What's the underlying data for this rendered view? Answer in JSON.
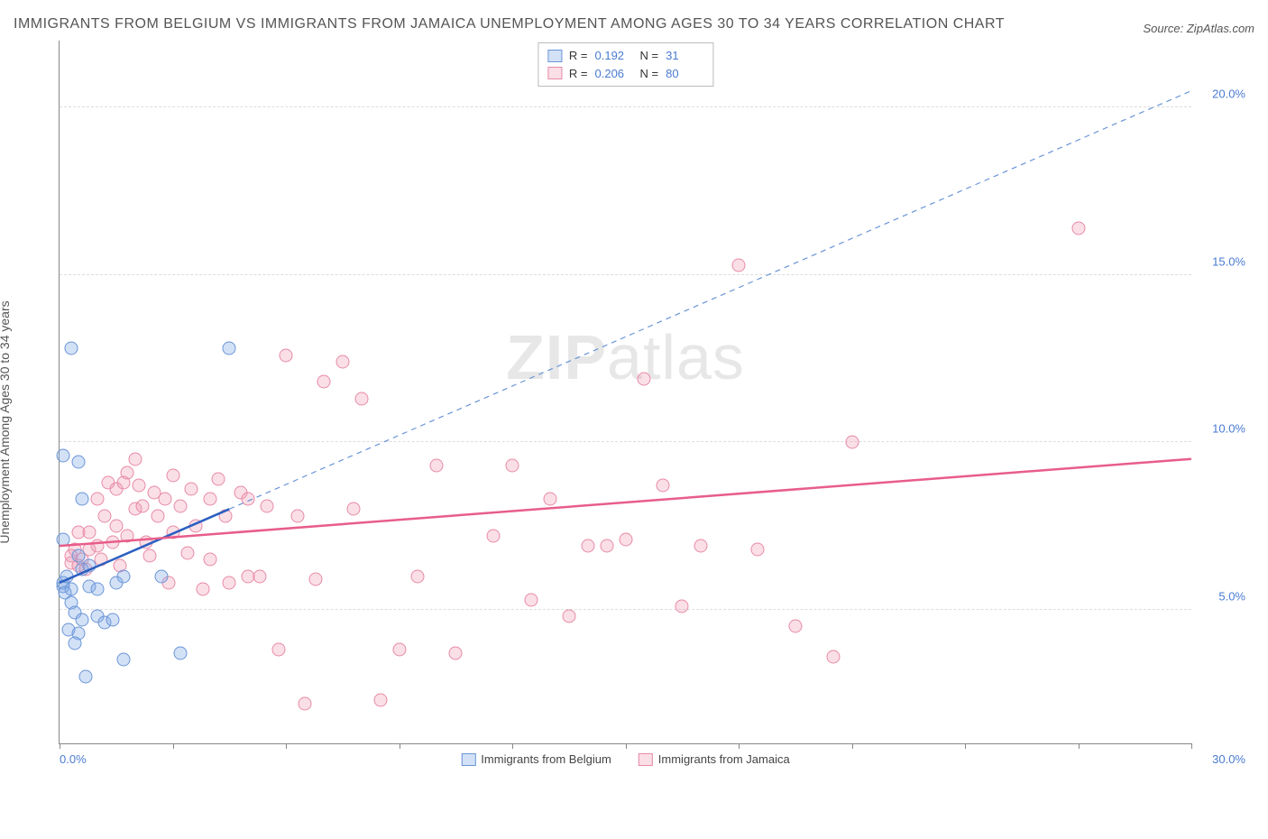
{
  "title": "IMMIGRANTS FROM BELGIUM VS IMMIGRANTS FROM JAMAICA UNEMPLOYMENT AMONG AGES 30 TO 34 YEARS CORRELATION CHART",
  "source": "Source: ZipAtlas.com",
  "y_axis_label": "Unemployment Among Ages 30 to 34 years",
  "watermark_a": "ZIP",
  "watermark_b": "atlas",
  "x_min_label": "0.0%",
  "x_max_label": "30.0%",
  "chart": {
    "type": "scatter",
    "xlim": [
      0,
      30
    ],
    "ylim": [
      1,
      22
    ],
    "y_ticks": [
      5,
      10,
      15,
      20
    ],
    "y_tick_labels": [
      "5.0%",
      "10.0%",
      "15.0%",
      "20.0%"
    ],
    "x_tick_positions": [
      0,
      3,
      6,
      9,
      12,
      15,
      18,
      21,
      24,
      27,
      30
    ],
    "grid_color": "#dddddd",
    "background_color": "#ffffff",
    "axis_color": "#888888",
    "tick_label_color": "#4a7bd0",
    "series": [
      {
        "name": "Immigrants from Belgium",
        "R": "0.192",
        "N": "31",
        "marker_fill": "rgba(130,170,230,0.35)",
        "marker_stroke": "#6a95d8",
        "trend": {
          "x1": 0.0,
          "y1": 5.8,
          "x2": 4.5,
          "y2": 8.0,
          "color": "#2b5fc0",
          "width": 2.5,
          "dash": "none"
        },
        "trend_ext": {
          "x1": 4.5,
          "y1": 8.0,
          "x2": 30,
          "y2": 20.5,
          "color": "#6a95d8",
          "width": 1.2,
          "dash": "6,5"
        },
        "points": [
          [
            0.1,
            5.7
          ],
          [
            0.1,
            5.8
          ],
          [
            0.2,
            6.0
          ],
          [
            0.15,
            5.5
          ],
          [
            0.3,
            5.6
          ],
          [
            0.3,
            5.2
          ],
          [
            0.4,
            4.9
          ],
          [
            0.25,
            4.4
          ],
          [
            0.5,
            4.3
          ],
          [
            0.6,
            4.7
          ],
          [
            0.4,
            4.0
          ],
          [
            0.1,
            9.6
          ],
          [
            0.5,
            9.4
          ],
          [
            0.6,
            8.3
          ],
          [
            0.1,
            7.1
          ],
          [
            0.5,
            6.6
          ],
          [
            0.6,
            6.2
          ],
          [
            0.8,
            6.3
          ],
          [
            0.8,
            5.7
          ],
          [
            1.0,
            5.6
          ],
          [
            1.0,
            4.8
          ],
          [
            1.2,
            4.6
          ],
          [
            1.4,
            4.7
          ],
          [
            1.5,
            5.8
          ],
          [
            1.7,
            6.0
          ],
          [
            0.7,
            3.0
          ],
          [
            1.7,
            3.5
          ],
          [
            3.2,
            3.7
          ],
          [
            2.7,
            6.0
          ],
          [
            0.3,
            12.8
          ],
          [
            4.5,
            12.8
          ]
        ]
      },
      {
        "name": "Immigrants from Jamaica",
        "R": "0.206",
        "N": "80",
        "marker_fill": "rgba(240,150,175,0.30)",
        "marker_stroke": "#e88aa5",
        "trend": {
          "x1": 0.0,
          "y1": 6.9,
          "x2": 30,
          "y2": 9.5,
          "color": "#e85d8a",
          "width": 2.5,
          "dash": "none"
        },
        "points": [
          [
            0.3,
            6.4
          ],
          [
            0.3,
            6.6
          ],
          [
            0.4,
            6.8
          ],
          [
            0.5,
            6.3
          ],
          [
            0.5,
            7.3
          ],
          [
            0.6,
            6.5
          ],
          [
            0.7,
            6.2
          ],
          [
            0.8,
            7.3
          ],
          [
            0.8,
            6.8
          ],
          [
            1.0,
            6.9
          ],
          [
            1.0,
            8.3
          ],
          [
            1.1,
            6.5
          ],
          [
            1.2,
            7.8
          ],
          [
            1.3,
            8.8
          ],
          [
            1.4,
            7.0
          ],
          [
            1.5,
            7.5
          ],
          [
            1.5,
            8.6
          ],
          [
            1.6,
            6.3
          ],
          [
            1.7,
            8.8
          ],
          [
            1.8,
            9.1
          ],
          [
            1.8,
            7.2
          ],
          [
            2.0,
            9.5
          ],
          [
            2.0,
            8.0
          ],
          [
            2.1,
            8.7
          ],
          [
            2.2,
            8.1
          ],
          [
            2.3,
            7.0
          ],
          [
            2.4,
            6.6
          ],
          [
            2.5,
            8.5
          ],
          [
            2.6,
            7.8
          ],
          [
            2.8,
            8.3
          ],
          [
            2.9,
            5.8
          ],
          [
            3.0,
            9.0
          ],
          [
            3.0,
            7.3
          ],
          [
            3.2,
            8.1
          ],
          [
            3.4,
            6.7
          ],
          [
            3.5,
            8.6
          ],
          [
            3.6,
            7.5
          ],
          [
            3.8,
            5.6
          ],
          [
            4.0,
            8.3
          ],
          [
            4.0,
            6.5
          ],
          [
            4.2,
            8.9
          ],
          [
            4.4,
            7.8
          ],
          [
            4.5,
            5.8
          ],
          [
            4.8,
            8.5
          ],
          [
            5.0,
            6.0
          ],
          [
            5.0,
            8.3
          ],
          [
            5.3,
            6.0
          ],
          [
            5.5,
            8.1
          ],
          [
            5.8,
            3.8
          ],
          [
            6.0,
            12.6
          ],
          [
            6.3,
            7.8
          ],
          [
            6.5,
            2.2
          ],
          [
            6.8,
            5.9
          ],
          [
            7.0,
            11.8
          ],
          [
            7.5,
            12.4
          ],
          [
            7.8,
            8.0
          ],
          [
            8.0,
            11.3
          ],
          [
            8.5,
            2.3
          ],
          [
            9.0,
            3.8
          ],
          [
            9.5,
            6.0
          ],
          [
            10.0,
            9.3
          ],
          [
            10.5,
            3.7
          ],
          [
            11.5,
            7.2
          ],
          [
            12.0,
            9.3
          ],
          [
            12.5,
            5.3
          ],
          [
            13.0,
            8.3
          ],
          [
            13.5,
            4.8
          ],
          [
            14.0,
            6.9
          ],
          [
            15.0,
            7.1
          ],
          [
            15.5,
            11.9
          ],
          [
            16.0,
            8.7
          ],
          [
            16.5,
            5.1
          ],
          [
            17.0,
            6.9
          ],
          [
            18.0,
            15.3
          ],
          [
            18.5,
            6.8
          ],
          [
            19.5,
            4.5
          ],
          [
            20.5,
            3.6
          ],
          [
            21.0,
            10.0
          ],
          [
            27.0,
            16.4
          ],
          [
            14.5,
            6.9
          ]
        ]
      }
    ]
  },
  "legend_labels": {
    "R": "R =",
    "N": "N ="
  }
}
